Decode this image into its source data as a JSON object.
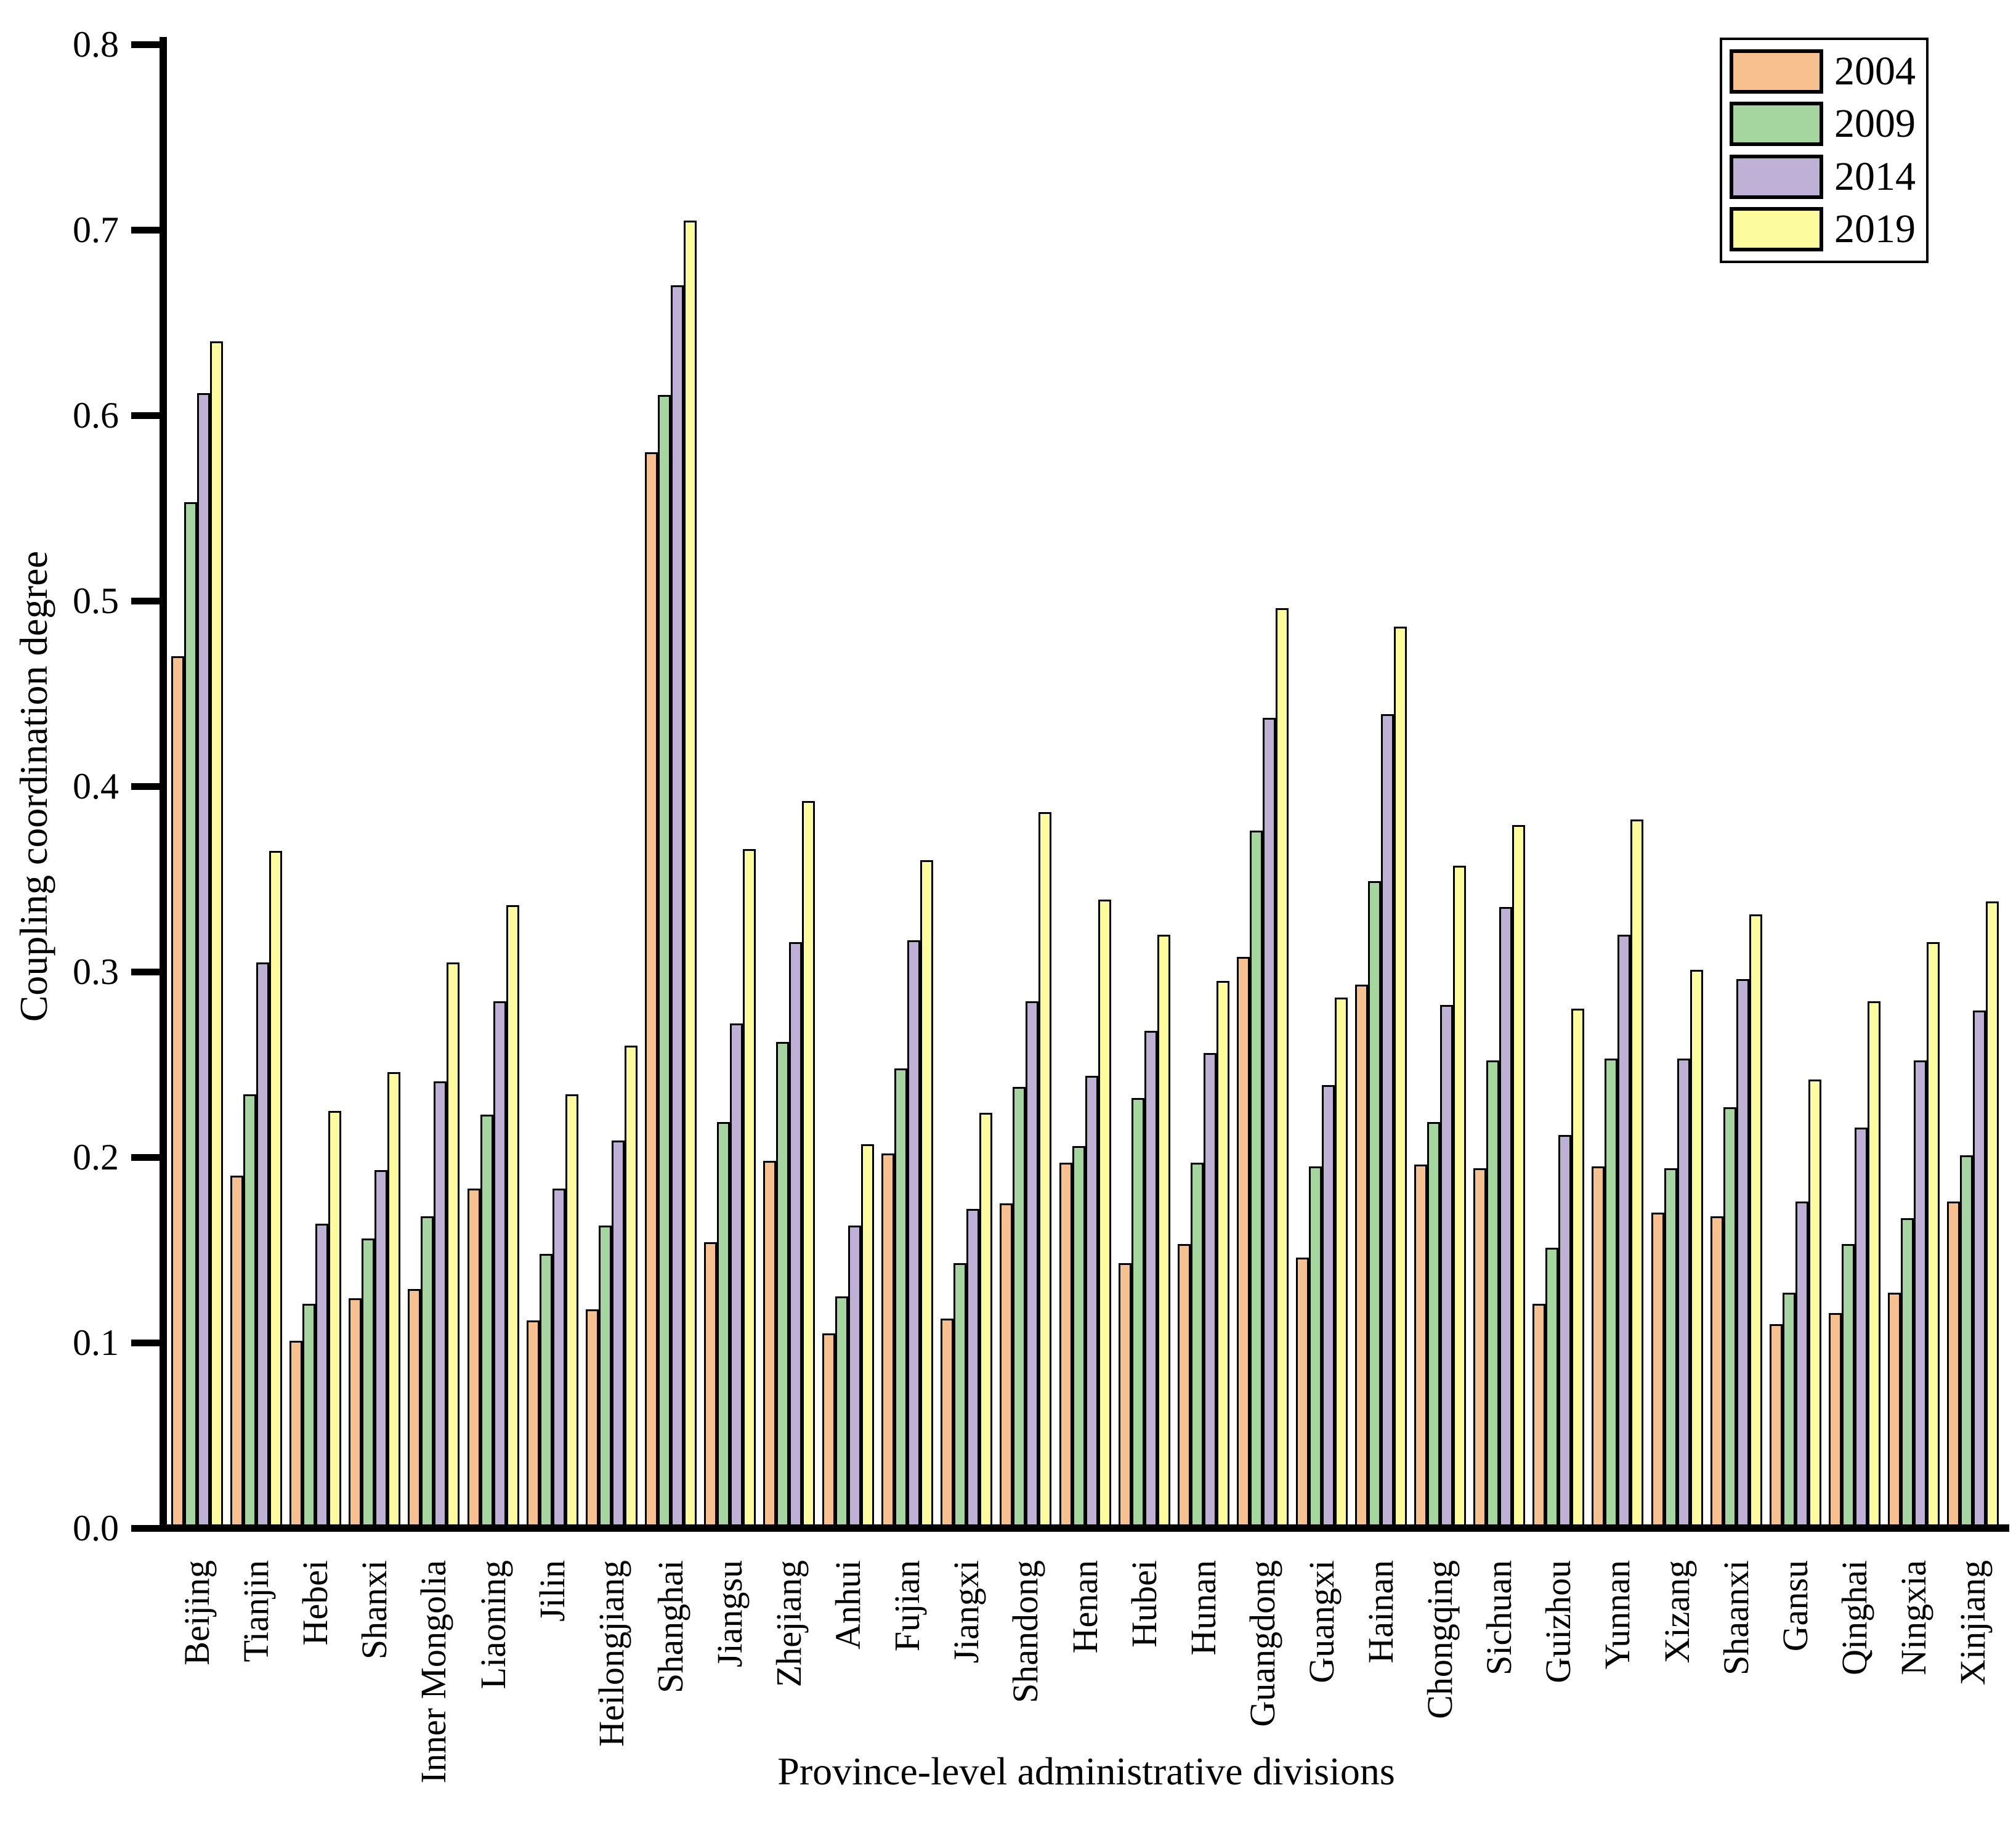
{
  "chart_data": {
    "type": "bar",
    "title": "",
    "y_axis": {
      "label": "Coupling coordination degree",
      "min": 0.0,
      "max": 0.8,
      "ticks": [
        "0.0",
        "0.1",
        "0.2",
        "0.3",
        "0.4",
        "0.5",
        "0.6",
        "0.7",
        "0.8"
      ]
    },
    "x_axis": {
      "label": "Province-level administrative divisions"
    },
    "grid": false,
    "legend_position": "top-right",
    "categories": [
      "Beijing",
      "Tianjin",
      "Hebei",
      "Shanxi",
      "Inner Mongolia",
      "Liaoning",
      "Jilin",
      "Heilongjiang",
      "Shanghai",
      "Jiangsu",
      "Zhejiang",
      "Anhui",
      "Fujian",
      "Jiangxi",
      "Shandong",
      "Henan",
      "Hubei",
      "Hunan",
      "Guangdong",
      "Guangxi",
      "Hainan",
      "Chongqing",
      "Sichuan",
      "Guizhou",
      "Yunnan",
      "Xizang",
      "Shaanxi",
      "Gansu",
      "Qinghai",
      "Ningxia",
      "Xinjiang"
    ],
    "series": [
      {
        "name": "2004",
        "color": "#F9C08F",
        "values": [
          0.47,
          0.19,
          0.101,
          0.124,
          0.129,
          0.183,
          0.112,
          0.118,
          0.58,
          0.154,
          0.198,
          0.105,
          0.202,
          0.113,
          0.175,
          0.197,
          0.143,
          0.153,
          0.308,
          0.146,
          0.293,
          0.196,
          0.194,
          0.121,
          0.195,
          0.17,
          0.168,
          0.11,
          0.116,
          0.127,
          0.176
        ]
      },
      {
        "name": "2009",
        "color": "#A5D6A0",
        "values": [
          0.553,
          0.234,
          0.121,
          0.156,
          0.168,
          0.223,
          0.148,
          0.163,
          0.611,
          0.219,
          0.262,
          0.125,
          0.248,
          0.143,
          0.238,
          0.206,
          0.232,
          0.197,
          0.376,
          0.195,
          0.349,
          0.219,
          0.252,
          0.151,
          0.253,
          0.194,
          0.227,
          0.127,
          0.153,
          0.167,
          0.201
        ]
      },
      {
        "name": "2014",
        "color": "#BFB1D5",
        "values": [
          0.612,
          0.305,
          0.164,
          0.193,
          0.241,
          0.284,
          0.183,
          0.209,
          0.67,
          0.272,
          0.316,
          0.163,
          0.317,
          0.172,
          0.284,
          0.244,
          0.268,
          0.256,
          0.437,
          0.239,
          0.439,
          0.282,
          0.335,
          0.212,
          0.32,
          0.253,
          0.296,
          0.176,
          0.216,
          0.252,
          0.279
        ]
      },
      {
        "name": "2019",
        "color": "#FCFC9F",
        "values": [
          0.64,
          0.365,
          0.225,
          0.246,
          0.305,
          0.336,
          0.234,
          0.26,
          0.705,
          0.366,
          0.392,
          0.207,
          0.36,
          0.224,
          0.386,
          0.339,
          0.32,
          0.295,
          0.496,
          0.286,
          0.486,
          0.357,
          0.379,
          0.28,
          0.382,
          0.301,
          0.331,
          0.242,
          0.284,
          0.316,
          0.338
        ]
      }
    ],
    "colors": {
      "axis": "#000000",
      "bar_border": "#000000",
      "background": "#FFFFFF"
    }
  }
}
